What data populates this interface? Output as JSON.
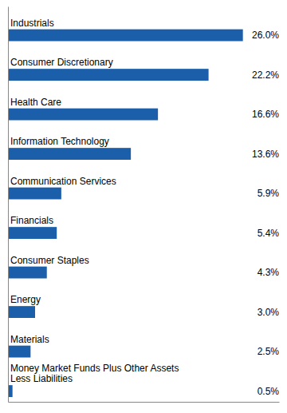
{
  "chart_data": {
    "type": "bar",
    "orientation": "horizontal",
    "categories": [
      "Industrials",
      "Consumer Discretionary",
      "Health Care",
      "Information Technology",
      "Communication Services",
      "Financials",
      "Consumer Staples",
      "Energy",
      "Materials",
      "Money Market Funds Plus Other Assets\nLess Liabilities"
    ],
    "values": [
      26.0,
      22.2,
      16.6,
      13.6,
      5.9,
      5.4,
      4.3,
      3.0,
      2.5,
      0.5
    ],
    "value_labels": [
      "26.0%",
      "22.2%",
      "16.6%",
      "13.6%",
      "5.9%",
      "5.4%",
      "4.3%",
      "3.0%",
      "2.5%",
      "0.5%"
    ],
    "data_labels": true,
    "color": "#1B5FAB",
    "xlim": [
      0,
      30
    ],
    "tick_labels": false,
    "grid": false
  }
}
